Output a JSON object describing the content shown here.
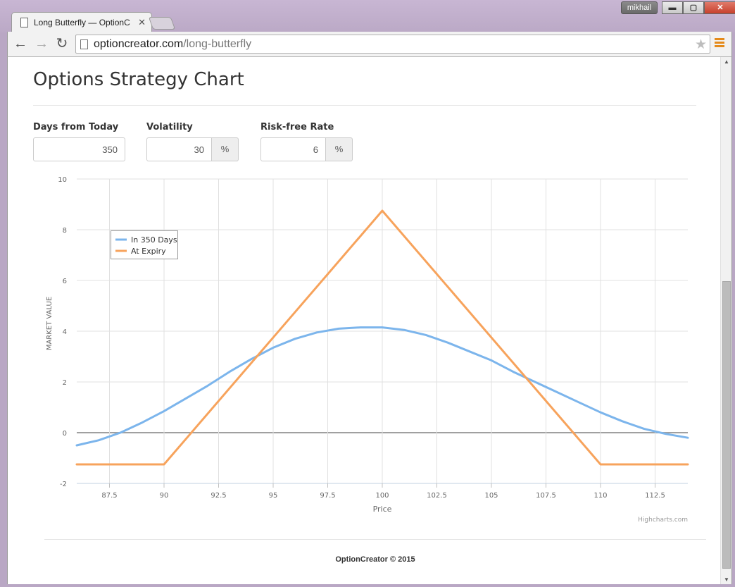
{
  "window": {
    "tab_title": "Long Butterfly — OptionC",
    "user": "mikhail",
    "min_label": "▬",
    "max_label": "▢",
    "close_label": "✕"
  },
  "address_bar": {
    "host": "optioncreator.com",
    "path": "/long-butterfly"
  },
  "page": {
    "title": "Options Strategy Chart",
    "fields": {
      "days": {
        "label": "Days from Today",
        "value": "350"
      },
      "volatility": {
        "label": "Volatility",
        "value": "30",
        "unit": "%"
      },
      "rate": {
        "label": "Risk-free Rate",
        "value": "6",
        "unit": "%"
      }
    },
    "footer": "OptionCreator © 2015"
  },
  "chart_data": {
    "type": "line",
    "xlabel": "Price",
    "ylabel": "MARKET VALUE",
    "credit": "Highcharts.com",
    "xlim": [
      86,
      114
    ],
    "ylim": [
      -2,
      10
    ],
    "x_ticks": [
      "87.5",
      "90",
      "92.5",
      "95",
      "97.5",
      "100",
      "102.5",
      "105",
      "107.5",
      "110",
      "112.5"
    ],
    "y_ticks": [
      "10",
      "8",
      "6",
      "4",
      "2",
      "0",
      "-2"
    ],
    "legend_position": "top-left",
    "grid": true,
    "series": [
      {
        "name": "In 350 Days",
        "color": "#7cb5ec",
        "points": [
          [
            86,
            -0.5
          ],
          [
            87,
            -0.3
          ],
          [
            88,
            0.0
          ],
          [
            89,
            0.4
          ],
          [
            90,
            0.85
          ],
          [
            91,
            1.35
          ],
          [
            92,
            1.85
          ],
          [
            93,
            2.4
          ],
          [
            94,
            2.9
          ],
          [
            95,
            3.35
          ],
          [
            96,
            3.7
          ],
          [
            97,
            3.95
          ],
          [
            98,
            4.1
          ],
          [
            99,
            4.15
          ],
          [
            100,
            4.15
          ],
          [
            101,
            4.05
          ],
          [
            102,
            3.85
          ],
          [
            103,
            3.55
          ],
          [
            104,
            3.2
          ],
          [
            105,
            2.85
          ],
          [
            106,
            2.4
          ],
          [
            107,
            2.0
          ],
          [
            108,
            1.6
          ],
          [
            109,
            1.2
          ],
          [
            110,
            0.8
          ],
          [
            111,
            0.45
          ],
          [
            112,
            0.15
          ],
          [
            113,
            -0.05
          ],
          [
            114,
            -0.2
          ]
        ]
      },
      {
        "name": "At Expiry",
        "color": "#f7a35c",
        "points": [
          [
            86,
            -1.25
          ],
          [
            90,
            -1.25
          ],
          [
            100,
            8.75
          ],
          [
            110,
            -1.25
          ],
          [
            114,
            -1.25
          ]
        ]
      }
    ]
  }
}
